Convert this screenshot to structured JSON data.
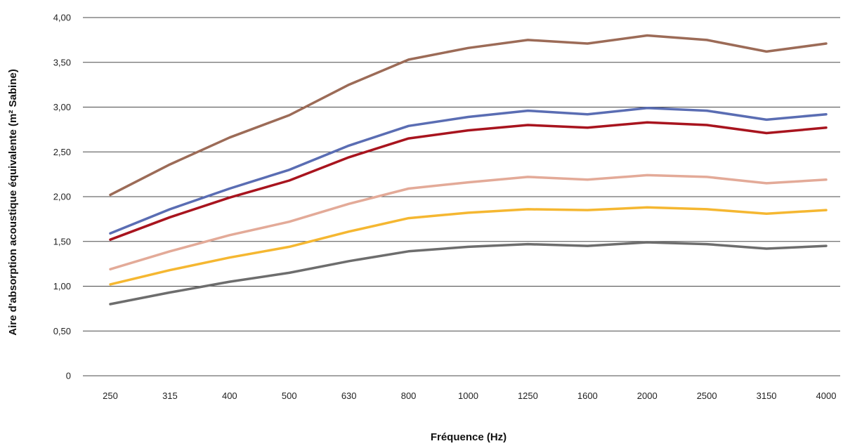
{
  "chart_data": {
    "type": "line",
    "title": "",
    "xlabel": "Fréquence (Hz)",
    "ylabel": "Aire d'absorption acoustique équivalente (m² Sabine)",
    "categories": [
      "250",
      "315",
      "400",
      "500",
      "630",
      "800",
      "1000",
      "1250",
      "1600",
      "2000",
      "2500",
      "3150",
      "4000"
    ],
    "ylim": [
      0,
      4
    ],
    "y_ticks": [
      0,
      0.5,
      1,
      1.5,
      2,
      2.5,
      3,
      3.5,
      4
    ],
    "y_tick_labels": [
      "0",
      "0,50",
      "1,00",
      "1,50",
      "2,00",
      "2,50",
      "3,00",
      "3,50",
      "4,00"
    ],
    "grid": "horizontal",
    "legend": "none",
    "series": [
      {
        "color": "#9c6b57",
        "values": [
          2.02,
          2.36,
          2.66,
          2.91,
          3.25,
          3.53,
          3.66,
          3.75,
          3.71,
          3.8,
          3.75,
          3.62,
          3.71
        ]
      },
      {
        "color": "#5a6db3",
        "values": [
          1.59,
          1.86,
          2.09,
          2.3,
          2.57,
          2.79,
          2.89,
          2.96,
          2.92,
          2.99,
          2.96,
          2.86,
          2.92
        ]
      },
      {
        "color": "#a8141e",
        "values": [
          1.52,
          1.77,
          1.99,
          2.18,
          2.44,
          2.65,
          2.74,
          2.8,
          2.77,
          2.83,
          2.8,
          2.71,
          2.77
        ]
      },
      {
        "color": "#e3aa98",
        "values": [
          1.19,
          1.39,
          1.57,
          1.72,
          1.92,
          2.09,
          2.16,
          2.22,
          2.19,
          2.24,
          2.22,
          2.15,
          2.19
        ]
      },
      {
        "color": "#f5b731",
        "values": [
          1.02,
          1.18,
          1.32,
          1.44,
          1.61,
          1.76,
          1.82,
          1.86,
          1.85,
          1.88,
          1.86,
          1.81,
          1.85
        ]
      },
      {
        "color": "#6d6d6d",
        "values": [
          0.8,
          0.93,
          1.05,
          1.15,
          1.28,
          1.39,
          1.44,
          1.47,
          1.45,
          1.49,
          1.47,
          1.42,
          1.45
        ]
      }
    ]
  }
}
